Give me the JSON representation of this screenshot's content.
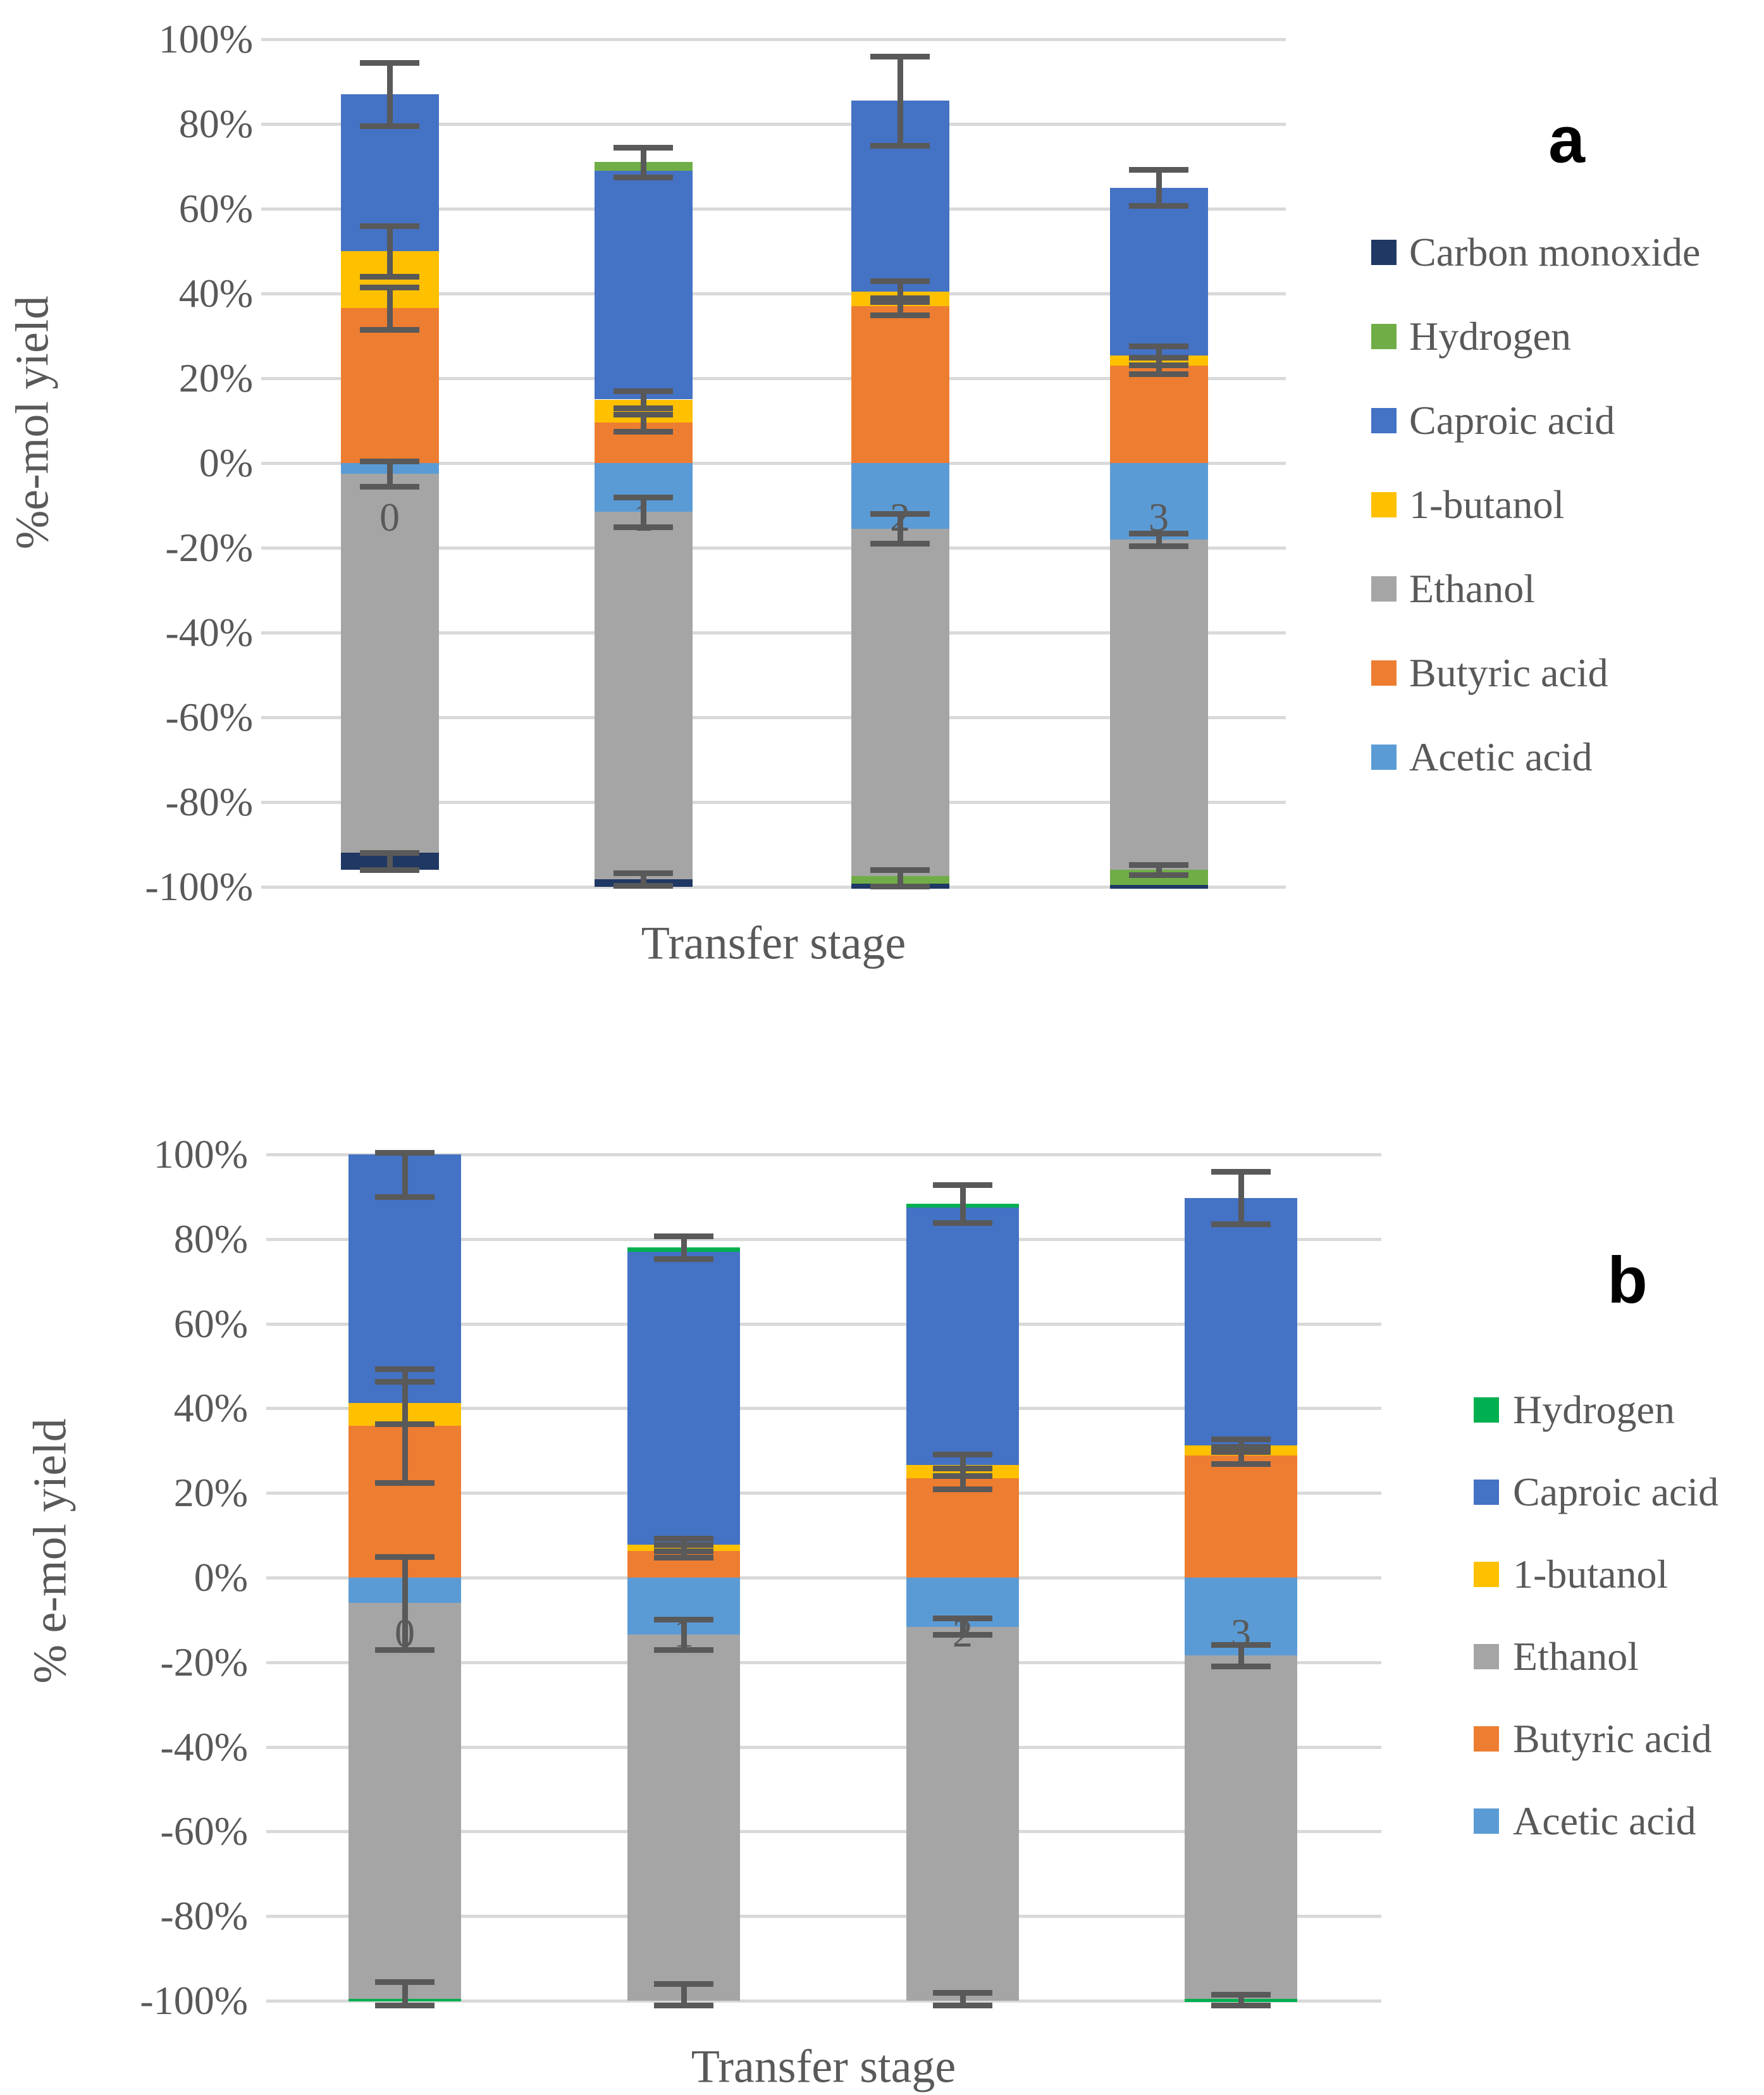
{
  "chart_data": [
    {
      "type": "bar",
      "subtype": "stacked-with-negatives",
      "panel_label": "a",
      "y_axis_title": "%e-mol yield",
      "x_axis_title": "Transfer stage",
      "ylim": [
        -100,
        100
      ],
      "grid": true,
      "legend_position": "right",
      "y_ticks": [
        "100%",
        "80%",
        "60%",
        "40%",
        "20%",
        "0%",
        "-20%",
        "-40%",
        "-60%",
        "-80%",
        "-100%"
      ],
      "categories": [
        "0",
        "1",
        "2",
        "3"
      ],
      "legend": [
        {
          "label": "Carbon monoxide",
          "color": "#1F3864"
        },
        {
          "label": "Hydrogen",
          "color": "#70AD47"
        },
        {
          "label": "Caproic acid",
          "color": "#4472C4"
        },
        {
          "label": "1-butanol",
          "color": "#FFC000"
        },
        {
          "label": "Ethanol",
          "color": "#A5A5A5"
        },
        {
          "label": "Butyric acid",
          "color": "#ED7D31"
        },
        {
          "label": "Acetic acid",
          "color": "#5B9BD5"
        }
      ],
      "positive_stack": [
        {
          "name": "Butyric acid",
          "color": "#ED7D31",
          "values": [
            36.5,
            9.5,
            37.0,
            23.0
          ]
        },
        {
          "name": "1-butanol",
          "color": "#FFC000",
          "values": [
            13.5,
            5.5,
            3.5,
            2.4
          ]
        },
        {
          "name": "Caproic acid",
          "color": "#4472C4",
          "values": [
            37.0,
            54.0,
            45.0,
            39.6
          ]
        },
        {
          "name": "Hydrogen",
          "color": "#70AD47",
          "values": [
            0,
            2.0,
            0,
            0
          ]
        }
      ],
      "negative_stack": [
        {
          "name": "Acetic acid",
          "color": "#5B9BD5",
          "values": [
            2.5,
            11.5,
            15.5,
            18.0
          ]
        },
        {
          "name": "Ethanol",
          "color": "#A5A5A5",
          "values": [
            89.5,
            86.7,
            82.0,
            78.0
          ]
        },
        {
          "name": "Hydrogen",
          "color": "#70AD47",
          "values": [
            0,
            0,
            1.8,
            3.5
          ]
        },
        {
          "name": "Carbon monoxide",
          "color": "#1F3864",
          "values": [
            4.0,
            1.8,
            1.2,
            1.0
          ]
        }
      ],
      "totals_positive": [
        87,
        71,
        85.5,
        65
      ],
      "totals_negative": [
        -96,
        -100,
        -100.5,
        -100.5
      ],
      "error_bars": [
        [
          {
            "at": 87,
            "pm": 7.5
          },
          {
            "at": 50,
            "pm": 6
          },
          {
            "at": 36.5,
            "pm": 5
          },
          {
            "at": -2.5,
            "pm": 3
          },
          {
            "at": -94,
            "pm": 2
          }
        ],
        [
          {
            "at": 71,
            "pm": 3.5
          },
          {
            "at": 15,
            "pm": 2
          },
          {
            "at": 9.5,
            "pm": 2
          },
          {
            "at": -11.5,
            "pm": 3.5
          },
          {
            "at": -98.2,
            "pm": 1.5
          }
        ],
        [
          {
            "at": 85.5,
            "pm": 10.5
          },
          {
            "at": 40.5,
            "pm": 2.5
          },
          {
            "at": 37,
            "pm": 2
          },
          {
            "at": -15.5,
            "pm": 3.5
          },
          {
            "at": -97.9,
            "pm": 2
          }
        ],
        [
          {
            "at": 65,
            "pm": 4.3
          },
          {
            "at": 25.4,
            "pm": 2.2
          },
          {
            "at": 23,
            "pm": 2
          },
          {
            "at": -18,
            "pm": 1.5
          },
          {
            "at": -96,
            "pm": 1.2
          }
        ]
      ],
      "colors": {
        "gridline": "#D9D9D9",
        "text": "#595959",
        "error_bar": "#595959"
      }
    },
    {
      "type": "bar",
      "subtype": "stacked-with-negatives",
      "panel_label": "b",
      "y_axis_title": "% e-mol yield",
      "x_axis_title": "Transfer stage",
      "ylim": [
        -100,
        100
      ],
      "grid": true,
      "legend_position": "right",
      "y_ticks": [
        "100%",
        "80%",
        "60%",
        "40%",
        "20%",
        "0%",
        "-20%",
        "-40%",
        "-60%",
        "-80%",
        "-100%"
      ],
      "categories": [
        "0",
        "1",
        "2",
        "3"
      ],
      "legend": [
        {
          "label": "Hydrogen",
          "color": "#00B050"
        },
        {
          "label": "Caproic acid",
          "color": "#4472C4"
        },
        {
          "label": "1-butanol",
          "color": "#FFC000"
        },
        {
          "label": "Ethanol",
          "color": "#A5A5A5"
        },
        {
          "label": "Butyric acid",
          "color": "#ED7D31"
        },
        {
          "label": "Acetic acid",
          "color": "#5B9BD5"
        }
      ],
      "positive_stack": [
        {
          "name": "Butyric acid",
          "color": "#ED7D31",
          "values": [
            35.9,
            6.3,
            23.4,
            28.9
          ]
        },
        {
          "name": "1-butanol",
          "color": "#FFC000",
          "values": [
            5.4,
            1.5,
            3.2,
            2.4
          ]
        },
        {
          "name": "Caproic acid",
          "color": "#4472C4",
          "values": [
            58.7,
            69.2,
            60.9,
            58.4
          ]
        },
        {
          "name": "Hydrogen",
          "color": "#00B050",
          "values": [
            0,
            1.0,
            0.8,
            0
          ]
        }
      ],
      "negative_stack": [
        {
          "name": "Acetic acid",
          "color": "#5B9BD5",
          "values": [
            6.0,
            13.5,
            11.6,
            18.4
          ]
        },
        {
          "name": "Ethanol",
          "color": "#A5A5A5",
          "values": [
            93.5,
            86.5,
            88.4,
            81.1
          ]
        },
        {
          "name": "Hydrogen",
          "color": "#00B050",
          "values": [
            0.7,
            0,
            0,
            0.8
          ]
        },
        {
          "name": "Carbon monoxide",
          "color": "#1F3864",
          "values": [
            0,
            0,
            0,
            0
          ]
        }
      ],
      "totals_positive": [
        100,
        78,
        88.3,
        89.7
      ],
      "totals_negative": [
        -100.2,
        -100,
        -100,
        -100.3
      ],
      "error_bars": [
        [
          {
            "at": 100,
            "pm": 10
          },
          {
            "at": 41.3,
            "pm": 5
          },
          {
            "at": 35.9,
            "pm": 13.5
          },
          {
            "at": -6,
            "pm": 11
          },
          {
            "at": -99.5,
            "pm": 4
          }
        ],
        [
          {
            "at": 78,
            "pm": 2.7
          },
          {
            "at": 7.8,
            "pm": 1.5
          },
          {
            "at": 6.3,
            "pm": 1.5
          },
          {
            "at": -13.5,
            "pm": 3.6
          },
          {
            "at": -100,
            "pm": 4
          }
        ],
        [
          {
            "at": 88.3,
            "pm": 4.5
          },
          {
            "at": 26.6,
            "pm": 2.5
          },
          {
            "at": 23.4,
            "pm": 2.5
          },
          {
            "at": -11.5,
            "pm": 2
          },
          {
            "at": -100,
            "pm": 2
          }
        ],
        [
          {
            "at": 89.7,
            "pm": 6.2
          },
          {
            "at": 31.3,
            "pm": 1.5
          },
          {
            "at": 28.9,
            "pm": 2
          },
          {
            "at": -18.4,
            "pm": 2.5
          },
          {
            "at": -100,
            "pm": 1.5
          }
        ]
      ],
      "colors": {
        "gridline": "#D9D9D9",
        "text": "#595959",
        "error_bar": "#595959"
      }
    }
  ]
}
